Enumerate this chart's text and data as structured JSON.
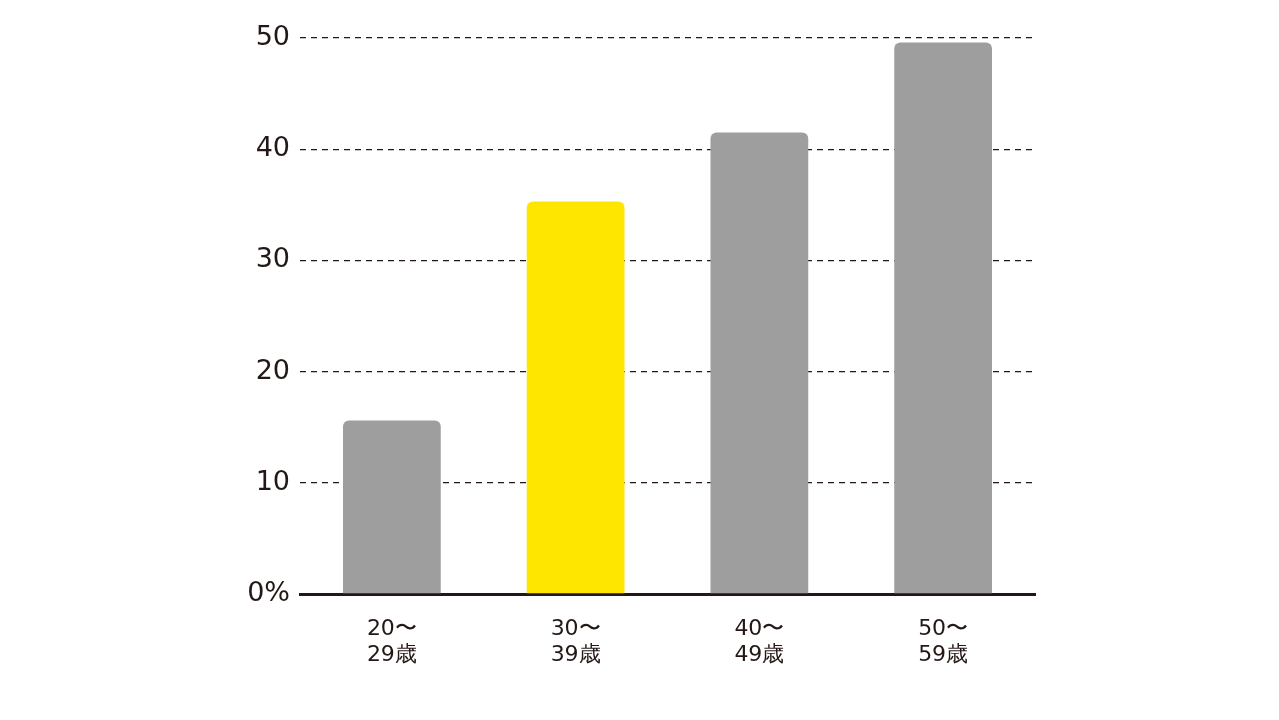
{
  "chart_data": {
    "type": "bar",
    "categories": [
      "20〜\n29歳",
      "30〜\n39歳",
      "40〜\n49歳",
      "50〜\n59歳"
    ],
    "values": [
      15.6,
      35.3,
      41.5,
      49.6
    ],
    "colors": [
      "#9e9e9f",
      "#ffe600",
      "#9e9e9f",
      "#9e9e9f"
    ],
    "ylim": [
      0,
      50
    ],
    "yticks": [
      {
        "value": 0,
        "label": "0%"
      },
      10,
      20,
      30,
      40,
      50
    ],
    "grid": "y",
    "legend": false
  }
}
